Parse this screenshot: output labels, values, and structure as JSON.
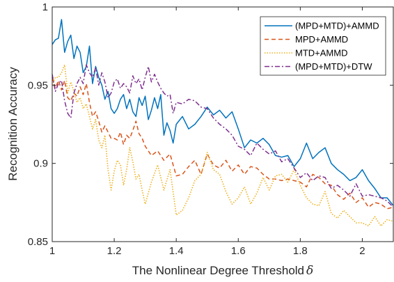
{
  "chart_data": {
    "type": "line",
    "xlabel": "The Nonlinear Degree Threshold",
    "xlabel_symbol": "δ",
    "ylabel": "Recognition Accuracy",
    "xlim": [
      1.0,
      2.1
    ],
    "ylim": [
      0.85,
      1.0
    ],
    "xticks": [
      1,
      1.2,
      1.4,
      1.6,
      1.8,
      2
    ],
    "xtick_labels": [
      "1",
      "1.2",
      "1.4",
      "1.6",
      "1.8",
      "2"
    ],
    "yticks": [
      0.85,
      0.9,
      0.95,
      1
    ],
    "ytick_labels": [
      "0.85",
      "0.9",
      "0.95",
      "1"
    ],
    "grid": false,
    "legend_position": "top-right",
    "series": [
      {
        "name": "(MPD+MTD)+AMMD",
        "color": "#0072BD",
        "style": "solid",
        "x": [
          1.0,
          1.01,
          1.02,
          1.03,
          1.04,
          1.05,
          1.06,
          1.07,
          1.08,
          1.09,
          1.1,
          1.11,
          1.12,
          1.13,
          1.14,
          1.15,
          1.16,
          1.17,
          1.18,
          1.19,
          1.2,
          1.21,
          1.22,
          1.23,
          1.24,
          1.25,
          1.26,
          1.27,
          1.28,
          1.29,
          1.3,
          1.31,
          1.32,
          1.33,
          1.34,
          1.35,
          1.36,
          1.37,
          1.38,
          1.39,
          1.4,
          1.42,
          1.44,
          1.46,
          1.48,
          1.5,
          1.52,
          1.54,
          1.56,
          1.58,
          1.6,
          1.62,
          1.64,
          1.66,
          1.68,
          1.7,
          1.72,
          1.74,
          1.76,
          1.78,
          1.8,
          1.82,
          1.84,
          1.86,
          1.88,
          1.9,
          1.92,
          1.94,
          1.96,
          1.98,
          2.0,
          2.02,
          2.04,
          2.06,
          2.08,
          2.1
        ],
        "values": [
          0.976,
          0.979,
          0.98,
          0.992,
          0.971,
          0.978,
          0.982,
          0.967,
          0.975,
          0.971,
          0.958,
          0.962,
          0.975,
          0.951,
          0.962,
          0.955,
          0.95,
          0.941,
          0.946,
          0.935,
          0.932,
          0.935,
          0.941,
          0.944,
          0.935,
          0.941,
          0.933,
          0.93,
          0.942,
          0.937,
          0.943,
          0.928,
          0.934,
          0.942,
          0.935,
          0.944,
          0.918,
          0.926,
          0.921,
          0.913,
          0.925,
          0.93,
          0.922,
          0.925,
          0.93,
          0.936,
          0.931,
          0.934,
          0.929,
          0.933,
          0.922,
          0.91,
          0.915,
          0.913,
          0.916,
          0.912,
          0.905,
          0.904,
          0.905,
          0.898,
          0.903,
          0.913,
          0.903,
          0.907,
          0.91,
          0.9,
          0.896,
          0.893,
          0.889,
          0.891,
          0.896,
          0.889,
          0.884,
          0.878,
          0.878,
          0.873
        ]
      },
      {
        "name": "MPD+AMMD",
        "color": "#D95319",
        "style": "dashed",
        "x": [
          1.0,
          1.01,
          1.02,
          1.03,
          1.04,
          1.05,
          1.06,
          1.07,
          1.08,
          1.09,
          1.1,
          1.11,
          1.12,
          1.13,
          1.14,
          1.15,
          1.16,
          1.17,
          1.18,
          1.19,
          1.2,
          1.21,
          1.22,
          1.23,
          1.24,
          1.25,
          1.26,
          1.27,
          1.28,
          1.29,
          1.3,
          1.32,
          1.34,
          1.36,
          1.38,
          1.4,
          1.42,
          1.44,
          1.46,
          1.48,
          1.5,
          1.52,
          1.54,
          1.56,
          1.58,
          1.6,
          1.62,
          1.64,
          1.66,
          1.68,
          1.7,
          1.72,
          1.74,
          1.76,
          1.78,
          1.8,
          1.82,
          1.84,
          1.86,
          1.88,
          1.9,
          1.92,
          1.94,
          1.96,
          1.98,
          2.0,
          2.02,
          2.04,
          2.06,
          2.08,
          2.1
        ],
        "values": [
          0.955,
          0.948,
          0.953,
          0.947,
          0.953,
          0.942,
          0.94,
          0.945,
          0.943,
          0.949,
          0.944,
          0.951,
          0.939,
          0.93,
          0.933,
          0.927,
          0.92,
          0.924,
          0.92,
          0.916,
          0.916,
          0.915,
          0.92,
          0.912,
          0.918,
          0.916,
          0.921,
          0.927,
          0.919,
          0.916,
          0.911,
          0.905,
          0.908,
          0.902,
          0.906,
          0.892,
          0.893,
          0.898,
          0.902,
          0.893,
          0.906,
          0.899,
          0.897,
          0.902,
          0.895,
          0.899,
          0.893,
          0.898,
          0.897,
          0.893,
          0.89,
          0.89,
          0.889,
          0.89,
          0.889,
          0.888,
          0.885,
          0.893,
          0.891,
          0.887,
          0.886,
          0.88,
          0.877,
          0.881,
          0.875,
          0.878,
          0.872,
          0.875,
          0.874,
          0.871,
          0.872
        ]
      },
      {
        "name": "MTD+AMMD",
        "color": "#EDB120",
        "style": "dotted",
        "x": [
          1.0,
          1.01,
          1.02,
          1.03,
          1.04,
          1.05,
          1.06,
          1.07,
          1.08,
          1.09,
          1.1,
          1.11,
          1.12,
          1.13,
          1.14,
          1.15,
          1.16,
          1.17,
          1.18,
          1.19,
          1.2,
          1.21,
          1.22,
          1.23,
          1.24,
          1.25,
          1.26,
          1.27,
          1.28,
          1.29,
          1.3,
          1.32,
          1.34,
          1.36,
          1.38,
          1.4,
          1.42,
          1.44,
          1.46,
          1.48,
          1.5,
          1.52,
          1.54,
          1.56,
          1.58,
          1.6,
          1.62,
          1.64,
          1.66,
          1.68,
          1.7,
          1.72,
          1.74,
          1.76,
          1.78,
          1.8,
          1.82,
          1.84,
          1.86,
          1.88,
          1.9,
          1.92,
          1.94,
          1.96,
          1.98,
          2.0,
          2.02,
          2.04,
          2.06,
          2.08,
          2.1
        ],
        "values": [
          0.95,
          0.955,
          0.955,
          0.958,
          0.963,
          0.945,
          0.952,
          0.946,
          0.939,
          0.942,
          0.935,
          0.938,
          0.93,
          0.922,
          0.928,
          0.915,
          0.91,
          0.918,
          0.896,
          0.883,
          0.895,
          0.902,
          0.899,
          0.886,
          0.896,
          0.91,
          0.901,
          0.89,
          0.893,
          0.883,
          0.874,
          0.888,
          0.899,
          0.883,
          0.896,
          0.867,
          0.87,
          0.878,
          0.889,
          0.893,
          0.907,
          0.896,
          0.893,
          0.882,
          0.874,
          0.878,
          0.885,
          0.874,
          0.881,
          0.891,
          0.883,
          0.892,
          0.893,
          0.888,
          0.896,
          0.886,
          0.878,
          0.874,
          0.873,
          0.882,
          0.868,
          0.865,
          0.87,
          0.866,
          0.862,
          0.862,
          0.86,
          0.866,
          0.86,
          0.864,
          0.863
        ]
      },
      {
        "name": "(MPD+MTD)+DTW",
        "color": "#7E2F8E",
        "style": "dashdot",
        "x": [
          1.0,
          1.01,
          1.02,
          1.03,
          1.04,
          1.05,
          1.06,
          1.07,
          1.08,
          1.09,
          1.1,
          1.11,
          1.12,
          1.13,
          1.14,
          1.15,
          1.16,
          1.17,
          1.18,
          1.19,
          1.2,
          1.21,
          1.22,
          1.23,
          1.24,
          1.25,
          1.26,
          1.27,
          1.28,
          1.29,
          1.3,
          1.31,
          1.32,
          1.33,
          1.34,
          1.35,
          1.36,
          1.37,
          1.38,
          1.39,
          1.4,
          1.42,
          1.44,
          1.46,
          1.48,
          1.5,
          1.52,
          1.54,
          1.56,
          1.58,
          1.6,
          1.62,
          1.64,
          1.66,
          1.68,
          1.7,
          1.72,
          1.74,
          1.76,
          1.78,
          1.8,
          1.82,
          1.84,
          1.86,
          1.88,
          1.9,
          1.92,
          1.94,
          1.96,
          1.98,
          2.0,
          2.02,
          2.04,
          2.06,
          2.08,
          2.1
        ],
        "values": [
          0.957,
          0.946,
          0.951,
          0.953,
          0.94,
          0.932,
          0.929,
          0.945,
          0.951,
          0.955,
          0.951,
          0.963,
          0.958,
          0.955,
          0.961,
          0.95,
          0.958,
          0.952,
          0.942,
          0.945,
          0.952,
          0.954,
          0.948,
          0.951,
          0.949,
          0.945,
          0.956,
          0.951,
          0.954,
          0.947,
          0.955,
          0.962,
          0.952,
          0.957,
          0.952,
          0.948,
          0.945,
          0.943,
          0.944,
          0.932,
          0.939,
          0.938,
          0.941,
          0.94,
          0.936,
          0.935,
          0.929,
          0.925,
          0.922,
          0.918,
          0.911,
          0.909,
          0.905,
          0.913,
          0.909,
          0.906,
          0.908,
          0.901,
          0.903,
          0.897,
          0.891,
          0.894,
          0.889,
          0.892,
          0.891,
          0.884,
          0.886,
          0.883,
          0.879,
          0.887,
          0.879,
          0.88,
          0.879,
          0.878,
          0.876,
          0.872
        ]
      }
    ]
  }
}
